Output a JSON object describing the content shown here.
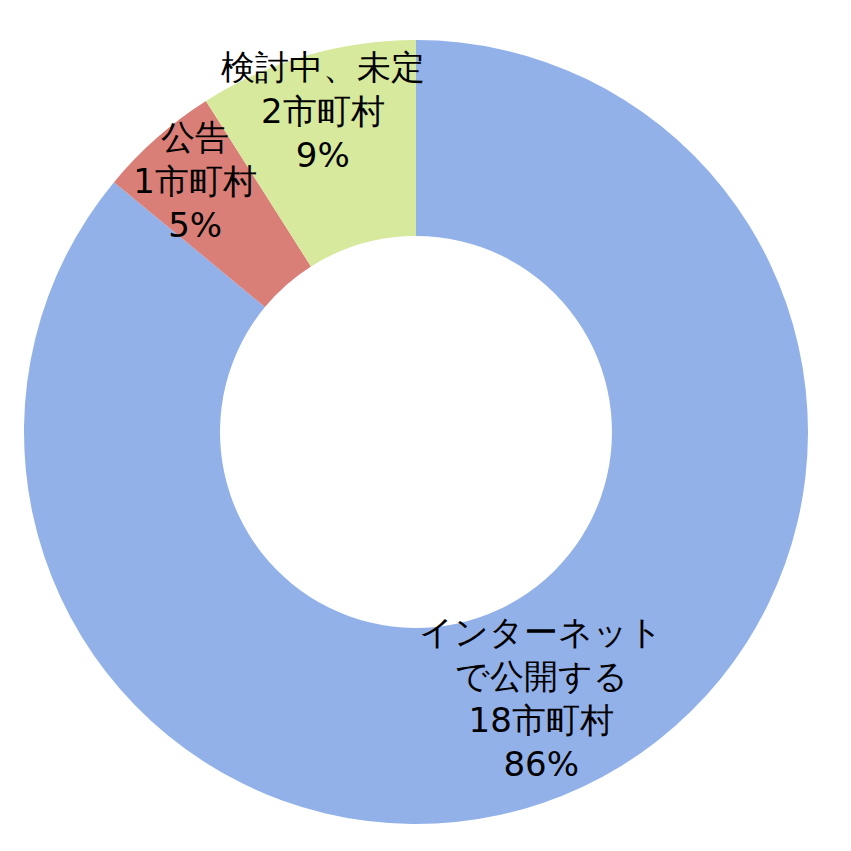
{
  "chart_data": {
    "type": "pie",
    "categories": [
      "インターネットで公開する",
      "公告",
      "検討中、未定"
    ],
    "values": [
      86,
      5,
      9
    ],
    "value_labels": [
      "86%",
      "5%",
      "9%"
    ],
    "counts": [
      18,
      1,
      2
    ],
    "count_labels": [
      "18市町村",
      "1市町村",
      "2市町村"
    ],
    "colors": [
      "#92b1e9",
      "#d97f77",
      "#d6e99d"
    ],
    "data_labels": true
  }
}
